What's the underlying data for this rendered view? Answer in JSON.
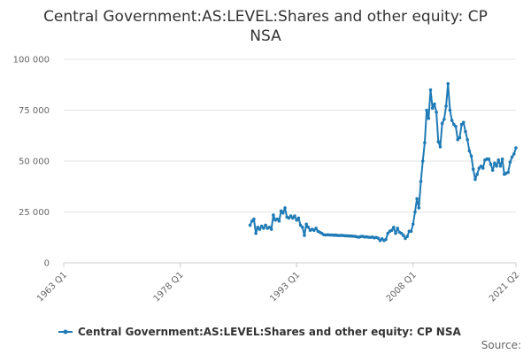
{
  "chart_data": {
    "type": "line",
    "title": "Central Government:AS:LEVEL:Shares and other equity: CP NSA",
    "title_lines": [
      "Central Government:AS:LEVEL:Shares and other equity: CP",
      "NSA"
    ],
    "xlabel": "",
    "ylabel": "",
    "x_ticks": [
      "1963 Q1",
      "1978 Q1",
      "1993 Q1",
      "2008 Q1",
      "2021 Q2"
    ],
    "y_ticks": [
      "0",
      "25 000",
      "50 000",
      "75 000",
      "100 000"
    ],
    "ylim": [
      0,
      100000
    ],
    "xlim": [
      "1963 Q1",
      "2021 Q2"
    ],
    "grid": "horizontal",
    "legend_position": "bottom",
    "source_label": "Source:",
    "colors": {
      "series": "#1f7bb6",
      "grid": "#e6e6e6",
      "axis": "#cccccc"
    },
    "series": [
      {
        "name": "Central Government:AS:LEVEL:Shares and other equity: CP NSA",
        "points": [
          [
            "1987 Q1",
            18500
          ],
          [
            "1987 Q2",
            20500
          ],
          [
            "1987 Q3",
            21500
          ],
          [
            "1987 Q4",
            14500
          ],
          [
            "1988 Q1",
            17500
          ],
          [
            "1988 Q2",
            16500
          ],
          [
            "1988 Q3",
            18000
          ],
          [
            "1988 Q4",
            17000
          ],
          [
            "1989 Q1",
            18500
          ],
          [
            "1989 Q2",
            17000
          ],
          [
            "1989 Q3",
            17500
          ],
          [
            "1989 Q4",
            16500
          ],
          [
            "1990 Q1",
            23500
          ],
          [
            "1990 Q2",
            21000
          ],
          [
            "1990 Q3",
            21500
          ],
          [
            "1990 Q4",
            20500
          ],
          [
            "1991 Q1",
            25500
          ],
          [
            "1991 Q2",
            24500
          ],
          [
            "1991 Q3",
            27000
          ],
          [
            "1991 Q4",
            22500
          ],
          [
            "1992 Q1",
            22000
          ],
          [
            "1992 Q2",
            23000
          ],
          [
            "1992 Q3",
            22000
          ],
          [
            "1992 Q4",
            23000
          ],
          [
            "1993 Q1",
            21000
          ],
          [
            "1993 Q2",
            22000
          ],
          [
            "1993 Q3",
            18500
          ],
          [
            "1993 Q4",
            17500
          ],
          [
            "1994 Q1",
            13500
          ],
          [
            "1994 Q2",
            19000
          ],
          [
            "1994 Q3",
            17500
          ],
          [
            "1994 Q4",
            16000
          ],
          [
            "1995 Q1",
            16500
          ],
          [
            "1995 Q2",
            16000
          ],
          [
            "1995 Q3",
            17000
          ],
          [
            "1995 Q4",
            15500
          ],
          [
            "1996 Q1",
            15000
          ],
          [
            "1996 Q2",
            14500
          ],
          [
            "1996 Q3",
            13800
          ],
          [
            "1996 Q4",
            13700
          ],
          [
            "1997 Q1",
            13800
          ],
          [
            "1997 Q2",
            13700
          ],
          [
            "1997 Q3",
            13700
          ],
          [
            "1997 Q4",
            13600
          ],
          [
            "1998 Q1",
            13600
          ],
          [
            "1998 Q2",
            13500
          ],
          [
            "1998 Q3",
            13400
          ],
          [
            "1998 Q4",
            13500
          ],
          [
            "1999 Q1",
            13400
          ],
          [
            "1999 Q2",
            13300
          ],
          [
            "1999 Q3",
            13300
          ],
          [
            "1999 Q4",
            13200
          ],
          [
            "2000 Q1",
            13200
          ],
          [
            "2000 Q2",
            13100
          ],
          [
            "2000 Q3",
            13000
          ],
          [
            "2000 Q4",
            12800
          ],
          [
            "2001 Q1",
            12600
          ],
          [
            "2001 Q2",
            12900
          ],
          [
            "2001 Q3",
            13000
          ],
          [
            "2001 Q4",
            12700
          ],
          [
            "2002 Q1",
            12800
          ],
          [
            "2002 Q2",
            12600
          ],
          [
            "2002 Q3",
            12500
          ],
          [
            "2002 Q4",
            12700
          ],
          [
            "2003 Q1",
            12300
          ],
          [
            "2003 Q2",
            12500
          ],
          [
            "2003 Q3",
            12100
          ],
          [
            "2003 Q4",
            11000
          ],
          [
            "2004 Q1",
            11800
          ],
          [
            "2004 Q2",
            11000
          ],
          [
            "2004 Q3",
            11500
          ],
          [
            "2004 Q4",
            14500
          ],
          [
            "2005 Q1",
            15500
          ],
          [
            "2005 Q2",
            16000
          ],
          [
            "2005 Q3",
            17500
          ],
          [
            "2005 Q4",
            14500
          ],
          [
            "2006 Q1",
            17000
          ],
          [
            "2006 Q2",
            15000
          ],
          [
            "2006 Q3",
            14500
          ],
          [
            "2006 Q4",
            13500
          ],
          [
            "2007 Q1",
            12000
          ],
          [
            "2007 Q2",
            13000
          ],
          [
            "2007 Q3",
            15500
          ],
          [
            "2007 Q4",
            15500
          ],
          [
            "2008 Q1",
            19000
          ],
          [
            "2008 Q2",
            25000
          ],
          [
            "2008 Q3",
            31500
          ],
          [
            "2008 Q4",
            27000
          ],
          [
            "2009 Q1",
            40000
          ],
          [
            "2009 Q2",
            50000
          ],
          [
            "2009 Q3",
            59000
          ],
          [
            "2009 Q4",
            75000
          ],
          [
            "2010 Q1",
            71000
          ],
          [
            "2010 Q2",
            85000
          ],
          [
            "2010 Q3",
            76000
          ],
          [
            "2010 Q4",
            78000
          ],
          [
            "2011 Q1",
            74000
          ],
          [
            "2011 Q2",
            59500
          ],
          [
            "2011 Q3",
            57000
          ],
          [
            "2011 Q4",
            68500
          ],
          [
            "2012 Q1",
            70500
          ],
          [
            "2012 Q2",
            77000
          ],
          [
            "2012 Q3",
            88000
          ],
          [
            "2012 Q4",
            75000
          ],
          [
            "2013 Q1",
            70000
          ],
          [
            "2013 Q2",
            68000
          ],
          [
            "2013 Q3",
            67000
          ],
          [
            "2013 Q4",
            60500
          ],
          [
            "2014 Q1",
            61500
          ],
          [
            "2014 Q2",
            68000
          ],
          [
            "2014 Q3",
            69000
          ],
          [
            "2014 Q4",
            64500
          ],
          [
            "2015 Q1",
            60500
          ],
          [
            "2015 Q2",
            55000
          ],
          [
            "2015 Q3",
            52500
          ],
          [
            "2015 Q4",
            46000
          ],
          [
            "2016 Q1",
            41000
          ],
          [
            "2016 Q2",
            43500
          ],
          [
            "2016 Q3",
            46500
          ],
          [
            "2016 Q4",
            47500
          ],
          [
            "2017 Q1",
            46500
          ],
          [
            "2017 Q2",
            50500
          ],
          [
            "2017 Q3",
            51000
          ],
          [
            "2017 Q4",
            51000
          ],
          [
            "2018 Q1",
            48500
          ],
          [
            "2018 Q2",
            45500
          ],
          [
            "2018 Q3",
            49000
          ],
          [
            "2018 Q4",
            47500
          ],
          [
            "2019 Q1",
            50500
          ],
          [
            "2019 Q2",
            47500
          ],
          [
            "2019 Q3",
            51000
          ],
          [
            "2019 Q4",
            43500
          ],
          [
            "2020 Q1",
            44000
          ],
          [
            "2020 Q2",
            44500
          ],
          [
            "2020 Q3",
            49500
          ],
          [
            "2020 Q4",
            52000
          ],
          [
            "2021 Q1",
            53500
          ],
          [
            "2021 Q2",
            56500
          ]
        ]
      }
    ]
  }
}
